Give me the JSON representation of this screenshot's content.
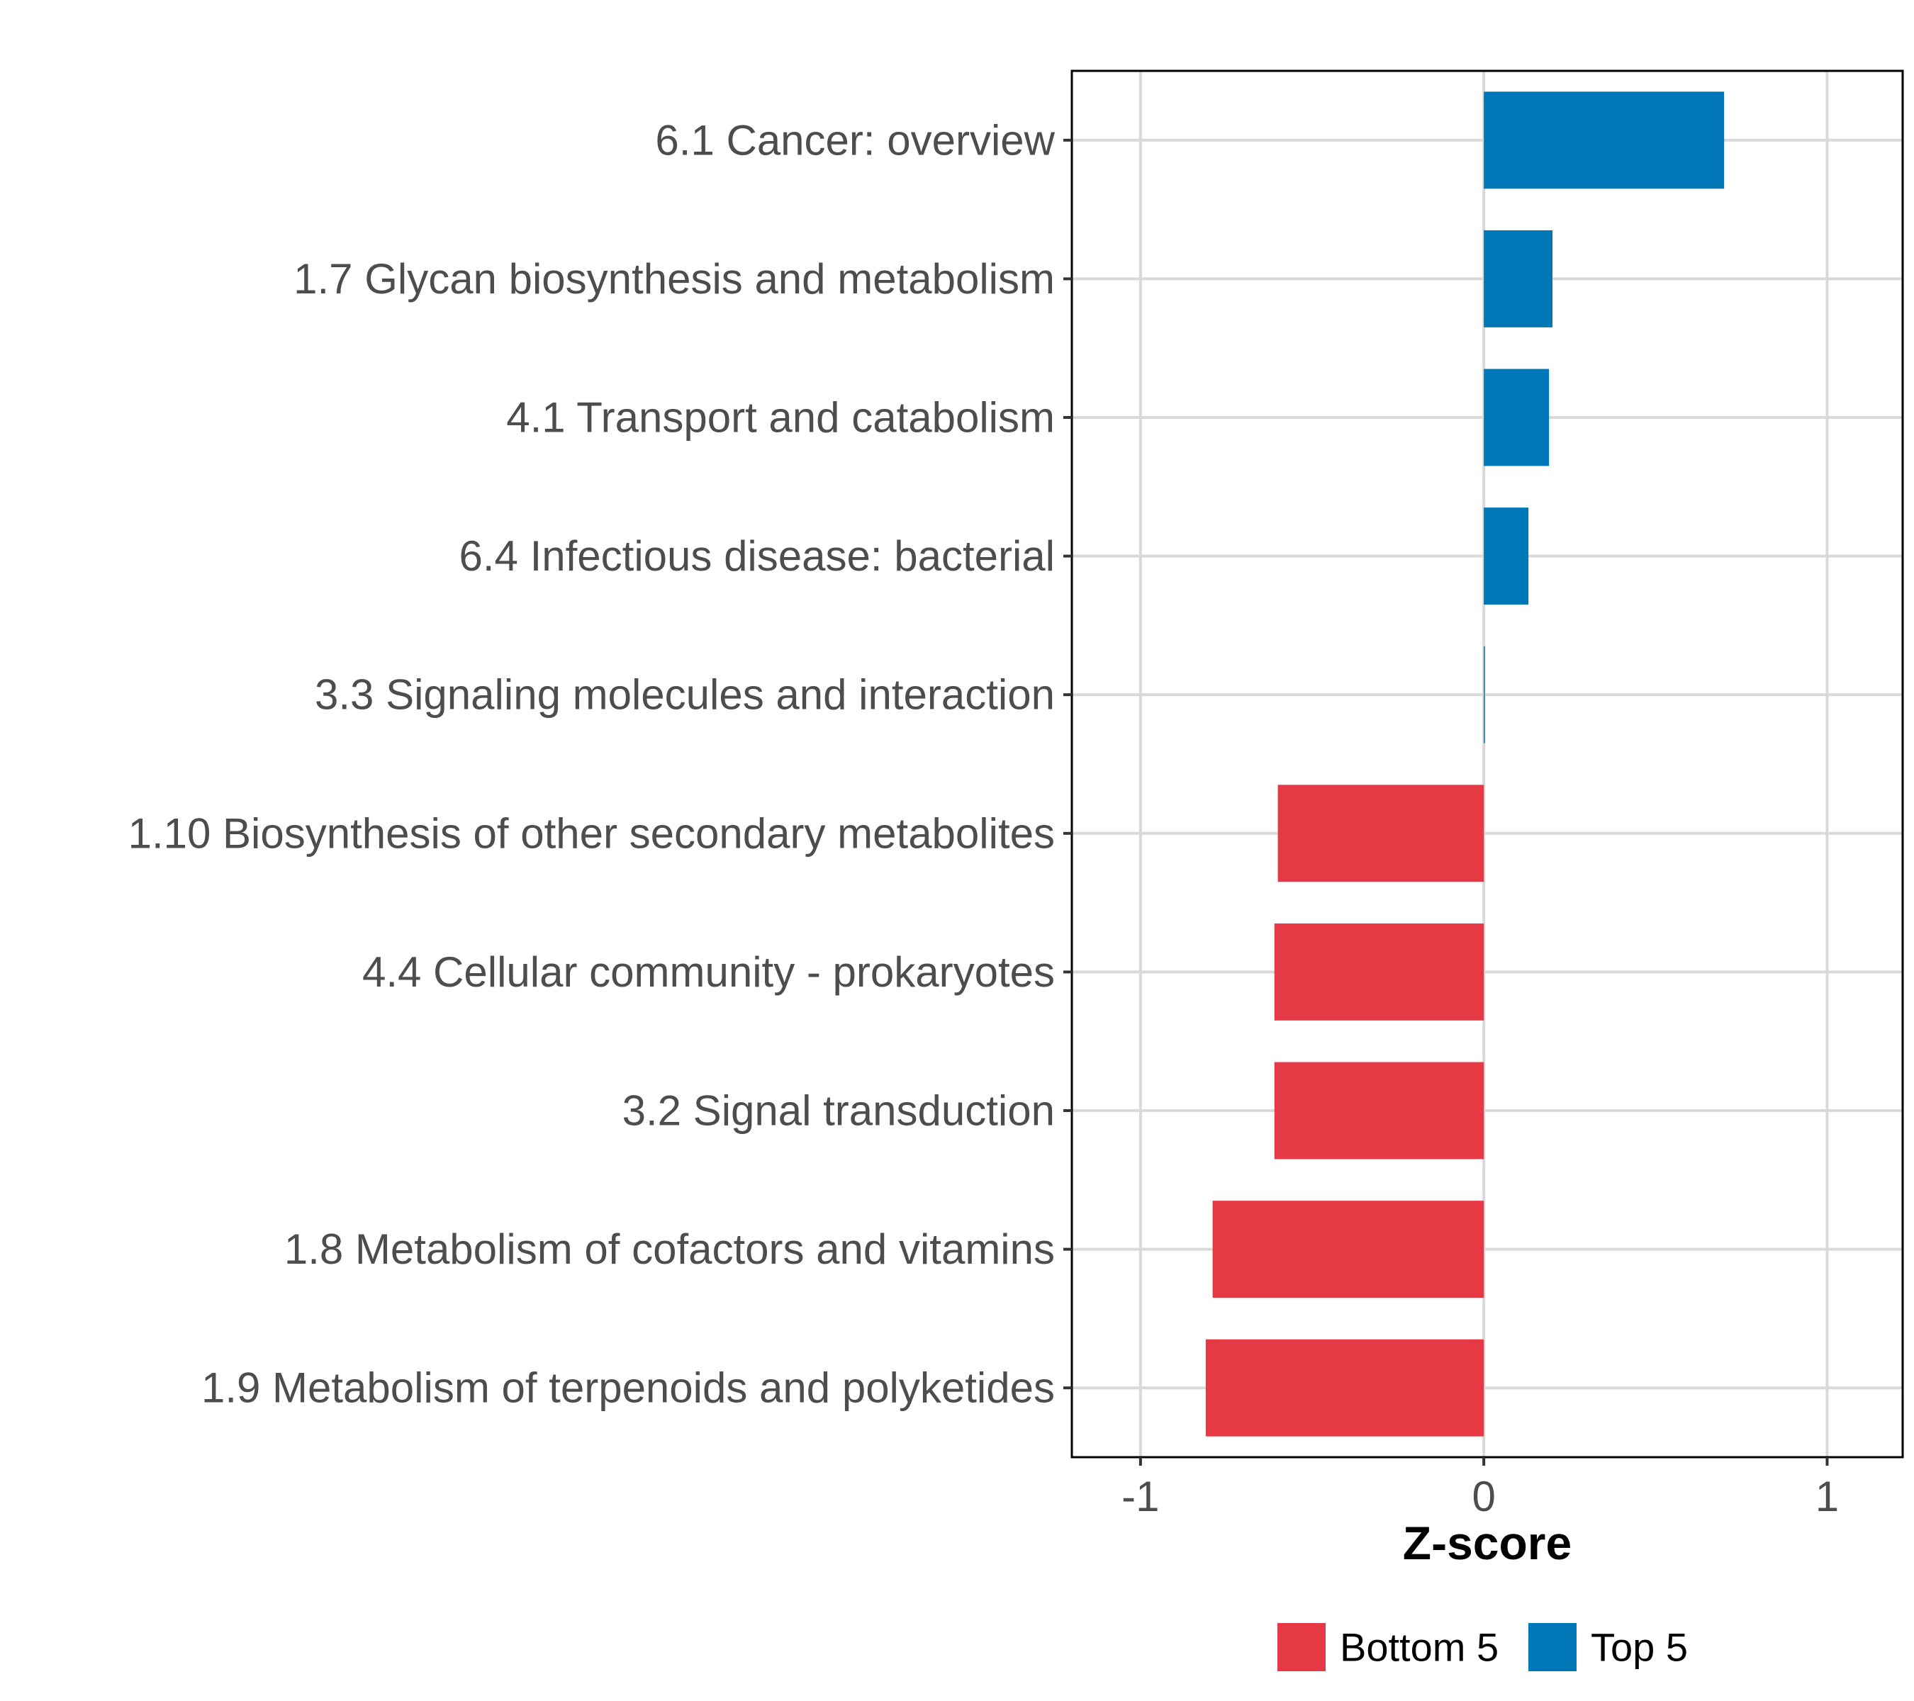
{
  "chart_data": {
    "type": "bar",
    "orientation": "horizontal",
    "categories": [
      "6.1 Cancer: overview",
      "1.7 Glycan biosynthesis and metabolism",
      "4.1 Transport and catabolism",
      "6.4 Infectious disease: bacterial",
      "3.3 Signaling molecules and interaction",
      "1.10 Biosynthesis of other secondary metabolites",
      "4.4 Cellular community - prokaryotes",
      "3.2 Signal transduction",
      "1.8 Metabolism of cofactors and vitamins",
      "1.9 Metabolism of terpenoids and polyketides"
    ],
    "values": [
      0.7,
      0.2,
      0.19,
      0.13,
      0.003,
      -0.6,
      -0.61,
      -0.61,
      -0.79,
      -0.81
    ],
    "groups": [
      "Top 5",
      "Top 5",
      "Top 5",
      "Top 5",
      "Top 5",
      "Bottom 5",
      "Bottom 5",
      "Bottom 5",
      "Bottom 5",
      "Bottom 5"
    ],
    "title": "",
    "xlabel": "Z-score",
    "ylabel": "",
    "xlim": [
      -1.2,
      1.22
    ],
    "xticks": [
      -1,
      0,
      1
    ],
    "xtick_labels": [
      "-1",
      "0",
      "1"
    ],
    "grid": true,
    "legend": {
      "position": "bottom",
      "entries": [
        {
          "label": "Bottom 5",
          "color": "#e63946"
        },
        {
          "label": "Top 5",
          "color": "#0077b6"
        }
      ]
    },
    "colors": {
      "Top 5": "#0077b6",
      "Bottom 5": "#e63946"
    }
  }
}
